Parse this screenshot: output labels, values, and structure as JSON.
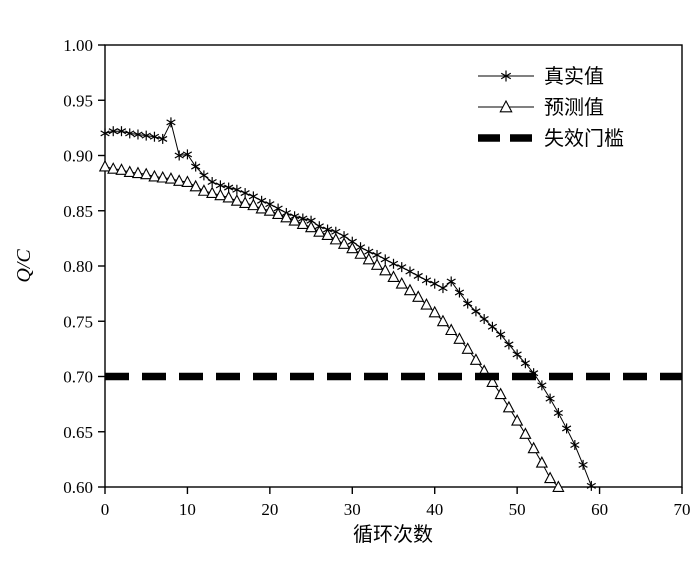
{
  "chart_data": {
    "type": "line",
    "title": "",
    "xlabel": "循环次数",
    "ylabel": "Q/C",
    "xlim": [
      0,
      70
    ],
    "ylim": [
      0.6,
      1.0
    ],
    "xticks": [
      0,
      10,
      20,
      30,
      40,
      50,
      60,
      70
    ],
    "yticks": [
      0.6,
      0.65,
      0.7,
      0.75,
      0.8,
      0.85,
      0.9,
      0.95,
      1.0
    ],
    "grid": false,
    "legend_position": "upper right",
    "line_color": "#000000",
    "background": "#ffffff",
    "series": [
      {
        "name": "真实值",
        "marker": "asterisk",
        "x": [
          0,
          1,
          2,
          3,
          4,
          5,
          6,
          7,
          8,
          9,
          10,
          11,
          12,
          13,
          14,
          15,
          16,
          17,
          18,
          19,
          20,
          21,
          22,
          23,
          24,
          25,
          26,
          27,
          28,
          29,
          30,
          31,
          32,
          33,
          34,
          35,
          36,
          37,
          38,
          39,
          40,
          41,
          42,
          43,
          44,
          45,
          46,
          47,
          48,
          49,
          50,
          51,
          52,
          53,
          54,
          55,
          56,
          57,
          58,
          59
        ],
        "y": [
          0.92,
          0.922,
          0.922,
          0.92,
          0.919,
          0.918,
          0.917,
          0.915,
          0.93,
          0.9,
          0.901,
          0.89,
          0.882,
          0.876,
          0.873,
          0.871,
          0.869,
          0.866,
          0.863,
          0.859,
          0.856,
          0.852,
          0.848,
          0.845,
          0.843,
          0.841,
          0.836,
          0.833,
          0.831,
          0.827,
          0.822,
          0.817,
          0.813,
          0.81,
          0.806,
          0.802,
          0.799,
          0.795,
          0.791,
          0.787,
          0.784,
          0.78,
          0.786,
          0.776,
          0.766,
          0.759,
          0.752,
          0.745,
          0.738,
          0.729,
          0.72,
          0.712,
          0.703,
          0.692,
          0.68,
          0.667,
          0.653,
          0.638,
          0.62,
          0.601
        ]
      },
      {
        "name": "预测值",
        "marker": "triangle",
        "x": [
          0,
          1,
          2,
          3,
          4,
          5,
          6,
          7,
          8,
          9,
          10,
          11,
          12,
          13,
          14,
          15,
          16,
          17,
          18,
          19,
          20,
          21,
          22,
          23,
          24,
          25,
          26,
          27,
          28,
          29,
          30,
          31,
          32,
          33,
          34,
          35,
          36,
          37,
          38,
          39,
          40,
          41,
          42,
          43,
          44,
          45,
          46,
          47,
          48,
          49,
          50,
          51,
          52,
          53,
          54,
          55
        ],
        "y": [
          0.89,
          0.888,
          0.887,
          0.885,
          0.884,
          0.883,
          0.881,
          0.88,
          0.879,
          0.877,
          0.876,
          0.872,
          0.868,
          0.866,
          0.864,
          0.862,
          0.859,
          0.857,
          0.855,
          0.852,
          0.85,
          0.847,
          0.844,
          0.841,
          0.838,
          0.835,
          0.831,
          0.828,
          0.824,
          0.82,
          0.816,
          0.811,
          0.806,
          0.801,
          0.796,
          0.79,
          0.784,
          0.778,
          0.772,
          0.765,
          0.758,
          0.75,
          0.742,
          0.734,
          0.725,
          0.715,
          0.705,
          0.695,
          0.684,
          0.672,
          0.66,
          0.648,
          0.635,
          0.622,
          0.608,
          0.6
        ]
      },
      {
        "name": "失效门槛",
        "marker": "none",
        "hline": 0.7,
        "style": "thick-dashed"
      }
    ]
  }
}
